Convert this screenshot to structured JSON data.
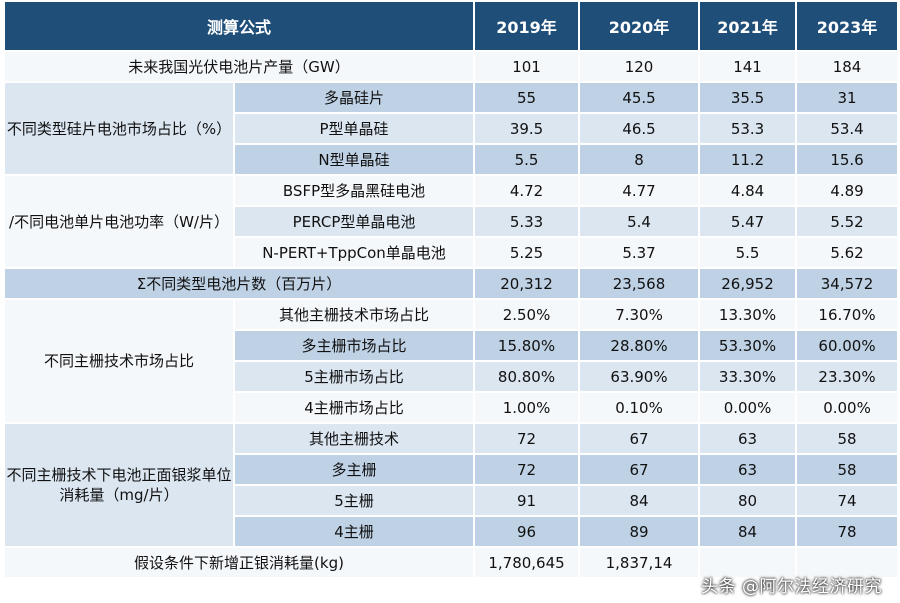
{
  "header": {
    "formula_label": "测算公式",
    "years": [
      "2019年",
      "2020年",
      "2021年",
      "2023年"
    ]
  },
  "rows": {
    "production": {
      "label": "未来我国光伏电池片产量（GW）",
      "values": [
        "101",
        "120",
        "141",
        "184"
      ]
    },
    "wafer_share": {
      "group_label": "不同类型硅片电池市场占比（%）",
      "items": [
        {
          "label": "多晶硅片",
          "values": [
            "55",
            "45.5",
            "35.5",
            "31"
          ]
        },
        {
          "label": "P型单晶硅",
          "values": [
            "39.5",
            "46.5",
            "53.3",
            "53.4"
          ]
        },
        {
          "label": "N型单晶硅",
          "values": [
            "5.5",
            "8",
            "11.2",
            "15.6"
          ]
        }
      ]
    },
    "cell_power": {
      "group_label": "/不同电池单片电池功率（W/片）",
      "items": [
        {
          "label": "BSFP型多晶黑硅电池",
          "values": [
            "4.72",
            "4.77",
            "4.84",
            "4.89"
          ]
        },
        {
          "label": "PERCP型单晶电池",
          "values": [
            "5.33",
            "5.4",
            "5.47",
            "5.52"
          ]
        },
        {
          "label": "N-PERT+TppCon单晶电池",
          "values": [
            "5.25",
            "5.37",
            "5.5",
            "5.62"
          ]
        }
      ]
    },
    "cell_count": {
      "label": "Σ不同类型电池片数（百万片）",
      "values": [
        "20,312",
        "23,568",
        "26,952",
        "34,572"
      ]
    },
    "busbar_share": {
      "group_label": "不同主栅技术市场占比",
      "items": [
        {
          "label": "其他主栅技术市场占比",
          "values": [
            "2.50%",
            "7.30%",
            "13.30%",
            "16.70%"
          ]
        },
        {
          "label": "多主栅市场占比",
          "values": [
            "15.80%",
            "28.80%",
            "53.30%",
            "60.00%"
          ]
        },
        {
          "label": "5主栅市场占比",
          "values": [
            "80.80%",
            "63.90%",
            "33.30%",
            "23.30%"
          ]
        },
        {
          "label": "4主栅市场占比",
          "values": [
            "1.00%",
            "0.10%",
            "0.00%",
            "0.00%"
          ]
        }
      ]
    },
    "silver_use": {
      "group_label": "不同主栅技术下电池正面银浆单位消耗量（mg/片）",
      "items": [
        {
          "label": "其他主栅技术",
          "values": [
            "72",
            "67",
            "63",
            "58"
          ]
        },
        {
          "label": "多主栅",
          "values": [
            "72",
            "67",
            "63",
            "58"
          ]
        },
        {
          "label": "5主栅",
          "values": [
            "91",
            "84",
            "80",
            "74"
          ]
        },
        {
          "label": "4主栅",
          "values": [
            "96",
            "89",
            "84",
            "78"
          ]
        }
      ]
    },
    "silver_total": {
      "label": "假设条件下新增正银消耗量(kg)",
      "values": [
        "1,780,645",
        "1,837,14",
        "",
        ""
      ]
    }
  },
  "watermark": "头条 @阿尔法经济研究"
}
